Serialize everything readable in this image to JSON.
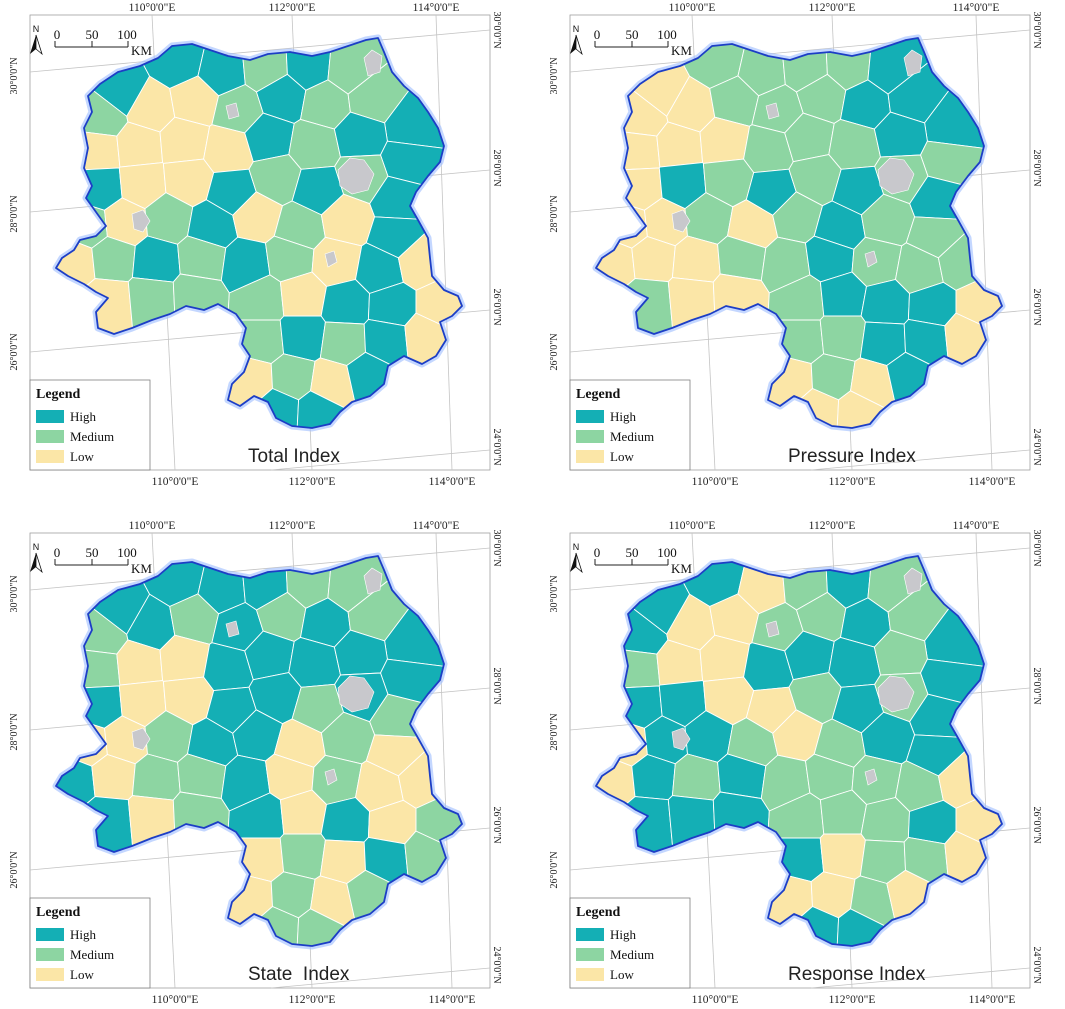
{
  "panels": [
    {
      "title": "Total Index"
    },
    {
      "title": "Pressure Index"
    },
    {
      "title": "State  Index"
    },
    {
      "title": "Response Index"
    }
  ],
  "graticule": {
    "top_lon": [
      "110°0'0\"E",
      "112°0'0\"E",
      "114°0'0\"E"
    ],
    "bottom_lon": [
      "110°0'0\"E",
      "112°0'0\"E",
      "114°0'0\"E"
    ],
    "left_lat": [
      "30°0'0\"N",
      "28°0'0\"N",
      "26°0'0\"N"
    ],
    "right_lat": [
      "30°0'0\"N",
      "28°0'0\"N",
      "26°0'0\"N",
      "24°0'0\"N"
    ]
  },
  "legend": {
    "title": "Legend",
    "items": [
      {
        "label": "High",
        "color": "#14afb5"
      },
      {
        "label": "Medium",
        "color": "#8dd5a2"
      },
      {
        "label": "Low",
        "color": "#fbe6a7"
      }
    ]
  },
  "scale_bar": {
    "north": "N",
    "ticks": [
      "0",
      "50",
      "100"
    ],
    "unit": "KM"
  },
  "colors": {
    "boundary": "#1c3ec6",
    "boundary_glow": "#9cbcff",
    "urban_area": "#c8c8cc",
    "county_line": "#ffffff",
    "frame": "#a0a0a0",
    "graticule": "#c4c4c4"
  }
}
